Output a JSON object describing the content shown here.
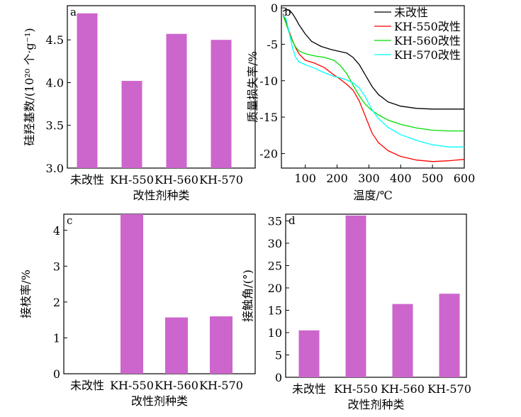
{
  "chart_data": [
    {
      "panel": "a",
      "type": "bar",
      "categories": [
        "未改性",
        "KH-550",
        "KH-560",
        "KH-570"
      ],
      "values": [
        4.81,
        4.02,
        4.57,
        4.5
      ],
      "xlabel": "改性剂种类",
      "ylabel": "硅羟基数/(10²⁰ 个·g⁻¹)",
      "ylim": [
        3.0,
        4.9
      ],
      "yticks": [
        "3.0",
        "3.5",
        "4.0",
        "4.5"
      ],
      "bar_color": "#cc66cc"
    },
    {
      "panel": "b",
      "type": "line",
      "xlabel": "温度/℃",
      "ylabel": "质量损失率/%",
      "xlim": [
        25,
        600
      ],
      "ylim": [
        -22,
        0.3
      ],
      "xticks": [
        "100",
        "200",
        "300",
        "400",
        "500",
        "600"
      ],
      "yticks": [
        "0",
        "-5",
        "-10",
        "-15",
        "-20"
      ],
      "legend_position": "top-right",
      "series": [
        {
          "name": "未改性",
          "color": "#000000",
          "x": [
            30,
            40,
            50,
            60,
            70,
            80,
            100,
            120,
            150,
            180,
            200,
            230,
            250,
            270,
            290,
            310,
            330,
            360,
            400,
            450,
            500,
            550,
            600
          ],
          "y": [
            -0.5,
            -0.2,
            -0.3,
            -0.8,
            -1.5,
            -2.3,
            -3.6,
            -4.6,
            -5.3,
            -5.7,
            -5.9,
            -6.2,
            -6.8,
            -7.8,
            -9.3,
            -10.8,
            -11.9,
            -12.9,
            -13.5,
            -13.8,
            -13.9,
            -13.9,
            -13.9
          ]
        },
        {
          "name": "KH-550改性",
          "color": "#ff0000",
          "x": [
            30,
            40,
            50,
            60,
            70,
            80,
            100,
            130,
            160,
            190,
            210,
            230,
            250,
            270,
            290,
            310,
            330,
            360,
            400,
            450,
            500,
            550,
            600
          ],
          "y": [
            -0.8,
            -2.0,
            -3.3,
            -4.5,
            -5.5,
            -6.3,
            -7.2,
            -7.6,
            -8.2,
            -9.2,
            -9.8,
            -10.5,
            -11.3,
            -12.8,
            -15.0,
            -17.2,
            -18.5,
            -19.6,
            -20.4,
            -20.9,
            -21.1,
            -21.0,
            -20.8
          ]
        },
        {
          "name": "KH-560改性",
          "color": "#00dd00",
          "x": [
            30,
            40,
            50,
            60,
            70,
            80,
            100,
            130,
            160,
            190,
            210,
            230,
            250,
            270,
            290,
            310,
            330,
            360,
            400,
            450,
            500,
            550,
            600
          ],
          "y": [
            -1.0,
            -2.2,
            -3.5,
            -4.6,
            -5.4,
            -5.9,
            -6.3,
            -6.6,
            -6.8,
            -7.2,
            -7.9,
            -9.0,
            -10.6,
            -12.1,
            -13.3,
            -14.1,
            -14.7,
            -15.4,
            -16.0,
            -16.5,
            -16.8,
            -16.9,
            -16.9
          ]
        },
        {
          "name": "KH-570改性",
          "color": "#00ffff",
          "x": [
            30,
            40,
            50,
            60,
            70,
            80,
            100,
            130,
            160,
            190,
            210,
            230,
            250,
            270,
            290,
            300,
            310,
            330,
            360,
            400,
            450,
            500,
            550,
            600
          ],
          "y": [
            -1.0,
            -1.5,
            -3.5,
            -5.5,
            -6.8,
            -7.4,
            -7.8,
            -8.3,
            -8.9,
            -9.4,
            -9.6,
            -9.9,
            -10.3,
            -11.0,
            -12.3,
            -13.2,
            -14.0,
            -15.2,
            -16.4,
            -17.4,
            -18.2,
            -18.8,
            -19.1,
            -19.1
          ]
        }
      ]
    },
    {
      "panel": "c",
      "type": "bar",
      "categories": [
        "未改性",
        "KH-550",
        "KH-560",
        "KH-570"
      ],
      "values": [
        0,
        4.45,
        1.57,
        1.6
      ],
      "xlabel": "改性剂种类",
      "ylabel": "接枝率/%",
      "ylim": [
        0,
        4.45
      ],
      "yticks": [
        "0",
        "1",
        "2",
        "3",
        "4"
      ],
      "bar_color": "#cc66cc"
    },
    {
      "panel": "d",
      "type": "bar",
      "categories": [
        "未改性",
        "KH-550",
        "KH-560",
        "KH-570"
      ],
      "values": [
        10.5,
        36.2,
        16.4,
        18.7
      ],
      "xlabel": "改性剂种类",
      "ylabel": "接触角/(°)",
      "ylim": [
        0,
        36.5
      ],
      "yticks": [
        "0",
        "5",
        "10",
        "15",
        "20",
        "25",
        "30",
        "35"
      ],
      "bar_color": "#cc66cc"
    }
  ]
}
